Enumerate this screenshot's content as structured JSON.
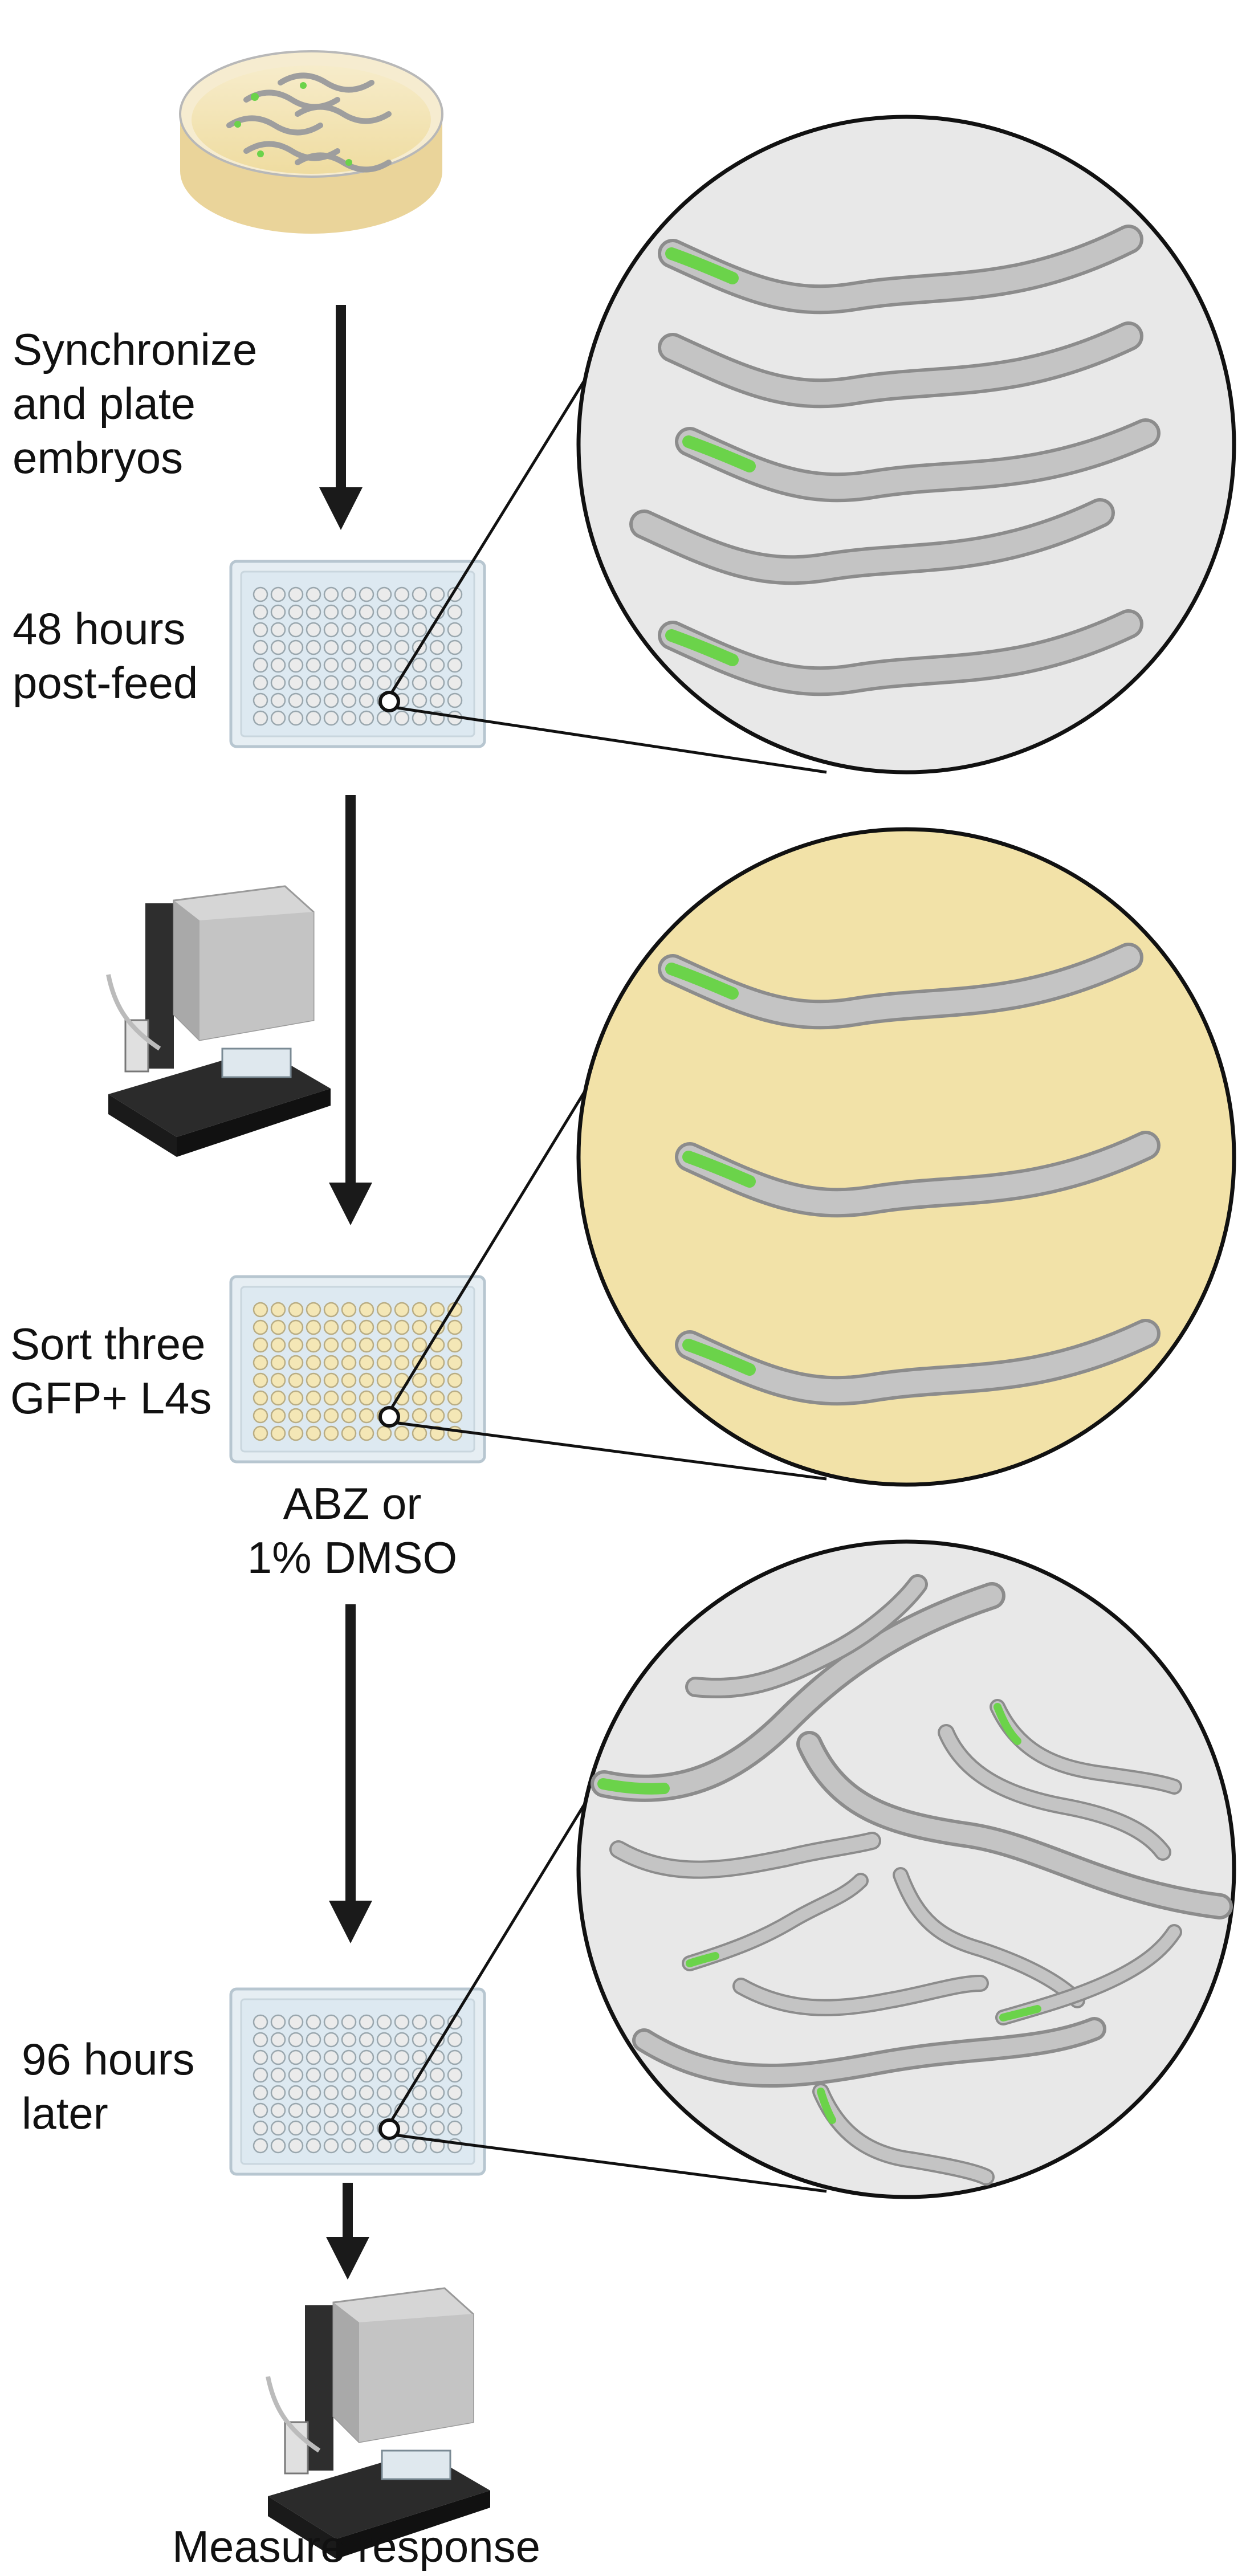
{
  "steps": {
    "synchronize": [
      "Synchronize",
      "and plate",
      "embryos"
    ],
    "feed": [
      "48 hours",
      "post-feed"
    ],
    "sort": [
      "Sort three",
      "GFP+ L4s"
    ],
    "treatment": [
      "ABZ or",
      "1% DMSO"
    ],
    "later": [
      "96 hours",
      "later"
    ],
    "measure": "Measure  response"
  },
  "colors": {
    "arrow": "#1a1a1a",
    "zoom_gray": "#e8e8e8",
    "zoom_yellow": "#f2e2a8",
    "worm_body": "#bdbdbd",
    "worm_outline": "#8c8c8c",
    "gfp": "#6bd34a",
    "plate_blue": "#dde9f1",
    "plate_yellow_well": "#f4e7b6"
  },
  "icons": [
    "petri-dish-icon",
    "well-plate-icon",
    "worm-sorter-icon",
    "worm-icon"
  ]
}
